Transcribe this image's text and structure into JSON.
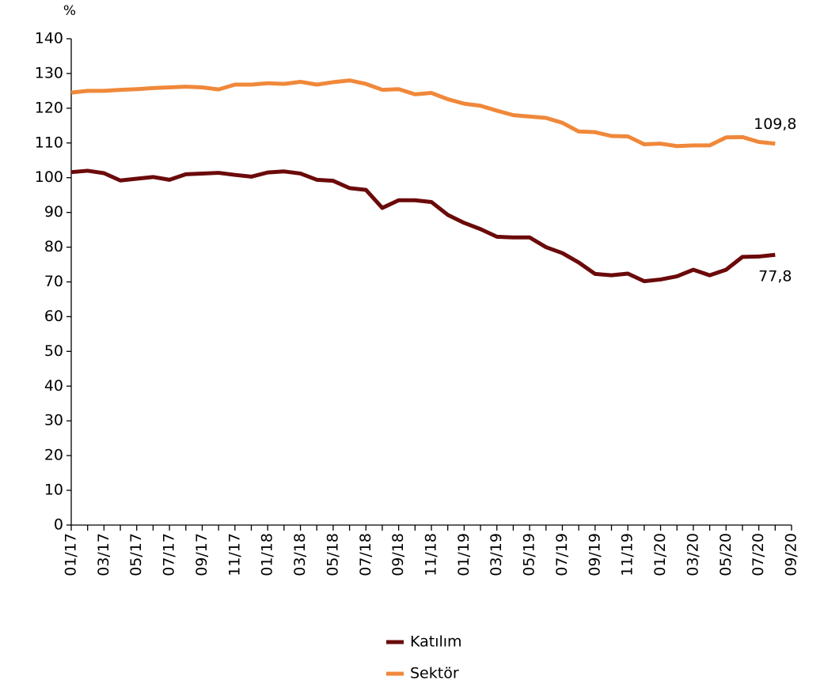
{
  "chart_data": {
    "type": "line",
    "y_label": "%",
    "categories": [
      "01/17",
      null,
      "03/17",
      null,
      "05/17",
      null,
      "07/17",
      null,
      "09/17",
      null,
      "11/17",
      null,
      "01/18",
      null,
      "03/18",
      null,
      "05/18",
      null,
      "07/18",
      null,
      "09/18",
      null,
      "11/18",
      null,
      "01/19",
      null,
      "03/19",
      null,
      "05/19",
      null,
      "07/19",
      null,
      "09/19",
      null,
      "11/19",
      null,
      "01/20",
      null,
      "03/20",
      null,
      "05/20",
      null,
      "07/20",
      null,
      "09/20"
    ],
    "series": [
      {
        "name": "Katılım",
        "color": "#6b0a0a",
        "values": [
          101.6,
          102,
          101.3,
          99.2,
          99.7,
          100.2,
          99.4,
          101,
          101.2,
          101.4,
          100.8,
          100.3,
          101.5,
          101.8,
          101.2,
          99.4,
          99.1,
          97,
          96.5,
          91.3,
          93.5,
          93.5,
          93,
          89.3,
          87,
          85.2,
          83,
          82.8,
          82.8,
          80,
          78.3,
          75.6,
          72.3,
          71.9,
          72.4,
          70.2,
          70.7,
          71.6,
          73.5,
          71.9,
          73.5,
          77.2,
          77.3,
          77.8,
          null
        ],
        "value_labels": [
          null,
          null,
          null,
          null,
          null,
          null,
          null,
          null,
          null,
          null,
          null,
          null,
          null,
          null,
          null,
          null,
          null,
          null,
          null,
          null,
          null,
          null,
          null,
          null,
          null,
          null,
          null,
          null,
          null,
          null,
          null,
          null,
          null,
          null,
          null,
          null,
          null,
          null,
          null,
          null,
          null,
          null,
          null,
          "77,8",
          null
        ]
      },
      {
        "name": "Sektör",
        "color": "#f0883a",
        "values": [
          124.5,
          125,
          125,
          125.3,
          125.5,
          125.8,
          126,
          126.2,
          126,
          125.4,
          126.8,
          126.8,
          127.2,
          127,
          127.6,
          126.8,
          127.5,
          128,
          127,
          125.3,
          125.5,
          124,
          124.4,
          122.6,
          121.3,
          120.7,
          119.3,
          118,
          117.6,
          117.2,
          115.8,
          113.3,
          113.1,
          112,
          111.9,
          109.6,
          109.8,
          109.1,
          109.3,
          109.3,
          111.6,
          111.7,
          110.3,
          109.8,
          null
        ],
        "value_labels": [
          null,
          null,
          null,
          null,
          null,
          null,
          null,
          null,
          null,
          null,
          null,
          null,
          null,
          null,
          null,
          null,
          null,
          null,
          null,
          null,
          null,
          null,
          null,
          null,
          null,
          null,
          null,
          null,
          null,
          null,
          null,
          null,
          null,
          null,
          null,
          null,
          null,
          null,
          null,
          null,
          null,
          null,
          null,
          "109,8",
          null
        ]
      }
    ],
    "ylim": [
      0,
      140
    ],
    "yticks": [
      0,
      10,
      20,
      30,
      40,
      50,
      60,
      70,
      80,
      90,
      100,
      110,
      120,
      130,
      140
    ]
  }
}
